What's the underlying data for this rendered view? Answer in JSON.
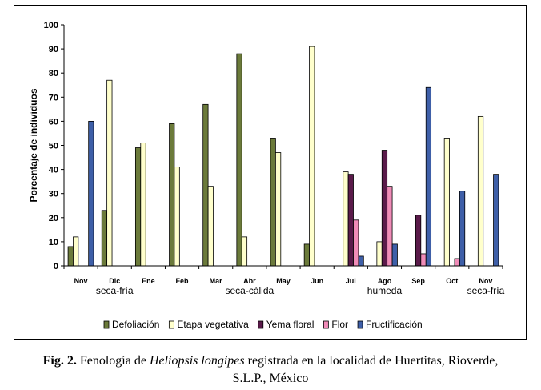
{
  "chart_data": {
    "type": "bar",
    "categories": [
      "Nov",
      "Dic",
      "Ene",
      "Feb",
      "Mar",
      "Abr",
      "May",
      "Jun",
      "Jul",
      "Ago",
      "Sep",
      "Oct",
      "Nov"
    ],
    "series": [
      {
        "name": "Defoliación",
        "color": "#6b7a3a",
        "values": [
          8,
          23,
          49,
          59,
          67,
          88,
          53,
          9,
          0,
          0,
          0,
          0,
          0
        ]
      },
      {
        "name": "Etapa vegetativa",
        "color": "#ffffcc",
        "values": [
          12,
          77,
          51,
          41,
          33,
          12,
          47,
          91,
          39,
          10,
          0,
          53,
          62
        ]
      },
      {
        "name": "Yema floral",
        "color": "#5a1a4a",
        "values": [
          0,
          0,
          0,
          0,
          0,
          0,
          0,
          0,
          38,
          48,
          21,
          0,
          0
        ]
      },
      {
        "name": "Flor",
        "color": "#f08cb8",
        "values": [
          0,
          0,
          0,
          0,
          0,
          0,
          0,
          0,
          19,
          33,
          5,
          3,
          0
        ]
      },
      {
        "name": "Fructificación",
        "color": "#3e5fa8",
        "values": [
          60,
          0,
          0,
          0,
          0,
          0,
          0,
          0,
          4,
          9,
          74,
          31,
          38
        ]
      }
    ],
    "ylabel": "Porcentaje de individuos",
    "ylim": [
      0,
      100
    ],
    "yticks": [
      0,
      10,
      20,
      30,
      40,
      50,
      60,
      70,
      80,
      90,
      100
    ],
    "season_labels": [
      {
        "text": "seca-fría",
        "category_index": 1
      },
      {
        "text": "seca-cálida",
        "category_index": 5
      },
      {
        "text": "humeda",
        "category_index": 9
      },
      {
        "text": "seca-fría",
        "category_index": 12
      }
    ],
    "grid": false,
    "legend_position": "bottom"
  },
  "caption": {
    "label": "Fig. 2.",
    "text_before": " Fenología de ",
    "species": "Heliopsis longipes",
    "text_after": " registrada en la localidad de Huertitas, Rioverde,",
    "line2": "S.L.P., México"
  }
}
